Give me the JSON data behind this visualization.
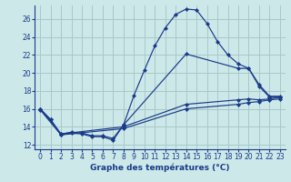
{
  "xlabel": "Graphe des températures (°C)",
  "background_color": "#cce8e8",
  "grid_color": "#aac8c8",
  "line_color": "#1a3a8a",
  "xlim": [
    -0.5,
    23.5
  ],
  "ylim": [
    11.5,
    27.5
  ],
  "xticks": [
    0,
    1,
    2,
    3,
    4,
    5,
    6,
    7,
    8,
    9,
    10,
    11,
    12,
    13,
    14,
    15,
    16,
    17,
    18,
    19,
    20,
    21,
    22,
    23
  ],
  "yticks": [
    12,
    14,
    16,
    18,
    20,
    22,
    24,
    26
  ],
  "series": [
    {
      "x": [
        0,
        1,
        2,
        3,
        4,
        5,
        6,
        7,
        8,
        9,
        10,
        11,
        12,
        13,
        14,
        15,
        16,
        17,
        18,
        19,
        20,
        21,
        22,
        23
      ],
      "y": [
        16.0,
        14.8,
        13.1,
        13.3,
        13.2,
        12.9,
        12.9,
        12.5,
        14.2,
        17.5,
        20.3,
        23.0,
        25.0,
        26.5,
        27.1,
        27.0,
        25.5,
        23.5,
        22.0,
        21.0,
        20.5,
        18.5,
        17.3,
        17.3
      ]
    },
    {
      "x": [
        0,
        1,
        2,
        3,
        4,
        5,
        6,
        7,
        8,
        14,
        19,
        20,
        21,
        22,
        23
      ],
      "y": [
        16.0,
        14.8,
        13.2,
        13.4,
        13.3,
        13.0,
        13.0,
        12.7,
        14.2,
        22.1,
        20.5,
        20.5,
        18.7,
        17.4,
        17.4
      ]
    },
    {
      "x": [
        0,
        2,
        8,
        14,
        19,
        20,
        21,
        22,
        23
      ],
      "y": [
        16.0,
        13.2,
        14.0,
        16.5,
        17.0,
        17.1,
        17.0,
        17.1,
        17.3
      ]
    },
    {
      "x": [
        0,
        2,
        8,
        14,
        19,
        20,
        21,
        22,
        23
      ],
      "y": [
        15.9,
        13.1,
        13.8,
        16.0,
        16.5,
        16.7,
        16.8,
        17.0,
        17.1
      ]
    }
  ]
}
